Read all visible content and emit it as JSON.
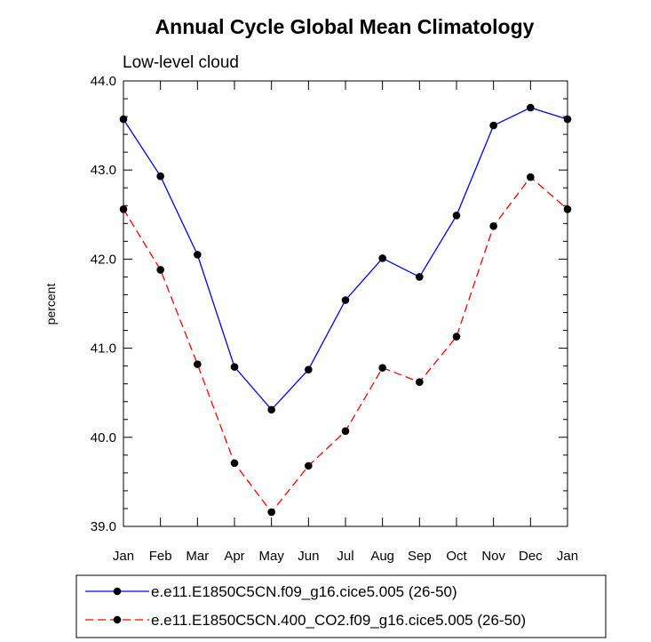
{
  "chart_data": {
    "type": "line",
    "title": "Annual Cycle Global Mean Climatology",
    "subtitle": "Low-level cloud",
    "xlabel": "",
    "ylabel": "percent",
    "categories": [
      "Jan",
      "Feb",
      "Mar",
      "Apr",
      "May",
      "Jun",
      "Jul",
      "Aug",
      "Sep",
      "Oct",
      "Nov",
      "Dec",
      "Jan"
    ],
    "ylim": [
      39.0,
      44.0
    ],
    "yticks": [
      "39.0",
      "40.0",
      "41.0",
      "42.0",
      "43.0",
      "44.0"
    ],
    "grid": false,
    "legend_position": "bottom",
    "series": [
      {
        "name": "e.e11.E1850C5CN.f09_g16.cice5.005 (26-50)",
        "color": "#0000ff",
        "style": "solid",
        "marker": "circle",
        "values": [
          43.57,
          42.93,
          42.05,
          40.79,
          40.31,
          40.76,
          41.54,
          42.01,
          41.8,
          42.49,
          43.5,
          43.7,
          43.57
        ]
      },
      {
        "name": "e.e11.E1850C5CN.400_CO2.f09_g16.cice5.005 (26-50)",
        "color": "#ff0000",
        "style": "dashed",
        "marker": "circle",
        "values": [
          42.56,
          41.88,
          40.82,
          39.71,
          39.16,
          39.68,
          40.07,
          40.78,
          40.62,
          41.13,
          42.37,
          42.92,
          42.56
        ]
      }
    ]
  }
}
